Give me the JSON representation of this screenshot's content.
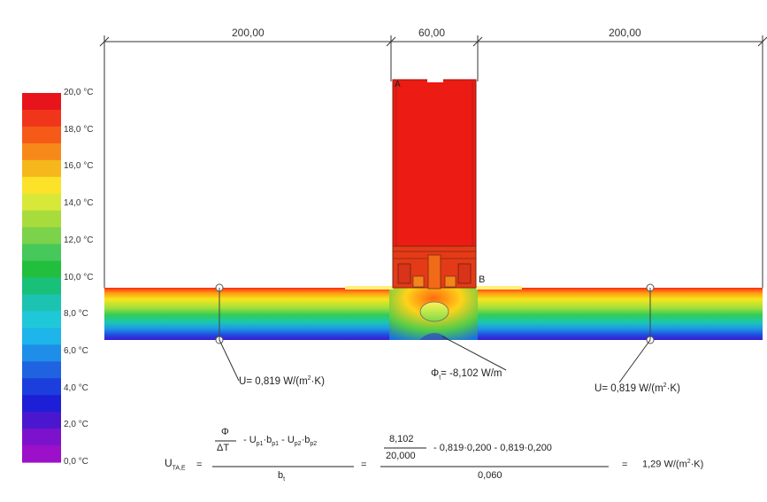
{
  "scale": {
    "labels": [
      "20,0 °C",
      "18,0 °C",
      "16,0 °C",
      "14,0 °C",
      "12,0 °C",
      "10,0 °C",
      "8,0 °C",
      "6,0 °C",
      "4,0 °C",
      "2,0 °C",
      "0,0 °C"
    ],
    "colors": [
      "#e8141b",
      "#f0351a",
      "#f55a18",
      "#f7891a",
      "#f5b71c",
      "#fde22a",
      "#d8e838",
      "#a8dc3c",
      "#7cd24a",
      "#47c85a",
      "#22bf3e",
      "#19c07a",
      "#1cc3b0",
      "#1fc8d8",
      "#1eb5ea",
      "#1f8ee8",
      "#1f63e0",
      "#1c3edc",
      "#1d1fd6",
      "#4a17cf",
      "#7d12cc",
      "#9c10ca"
    ]
  },
  "dimensions": {
    "left": "200,00",
    "middle": "60,00",
    "right": "200,00"
  },
  "points": {
    "a": "A",
    "b": "B"
  },
  "annotations": {
    "u_left_prefix": "U",
    "u_left_value": "= 0,819 W/(m",
    "u_left_unit_tail": "·K)",
    "phi_symbol": "Φ",
    "phi_sub": "t",
    "phi_value": "= -8,102 W/m",
    "u_right_prefix": "U",
    "u_right_value": "= 0,819 W/(m",
    "u_right_unit_tail": "·K)",
    "sup2": "2"
  },
  "formula": {
    "lhs": "U",
    "lhs_sub": "TA,E",
    "eq1": "=",
    "frac_num_top": "Φ",
    "frac_num_bottom": "ΔT",
    "num_terms": "- U",
    "num_sub1": "p1",
    "num_mid1": "·b",
    "num_sub2": "p1",
    "num_mid2": " - U",
    "num_sub3": "p2",
    "num_mid3": "·b",
    "num_sub4": "p2",
    "denominator": "b",
    "den_sub": "t",
    "eq2": "=",
    "val_frac_top": "8,102",
    "val_frac_bottom": "20,000",
    "val_terms": "- 0,819·0,200  - 0,819·0,200",
    "val_denominator": "0,060",
    "eq3": "=",
    "result": "1,29 W/(m",
    "result_tail": "·K)",
    "result_sup": "2"
  }
}
